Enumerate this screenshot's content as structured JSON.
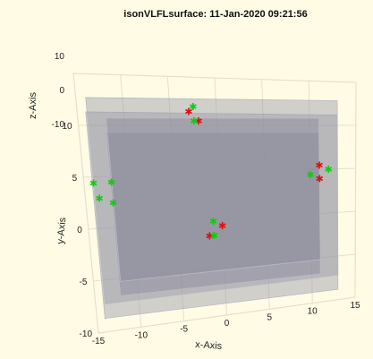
{
  "chart_data": {
    "type": "scatter3d",
    "title": "isonVLFLsurface: 11-Jan-2020 09:21:56",
    "xlabel": "x-Axis",
    "ylabel": "y-Axis",
    "zlabel": "z-Axis",
    "xlim": [
      -15,
      15
    ],
    "ylim": [
      -10,
      15
    ],
    "zlim": [
      -10,
      10
    ],
    "xticks": [
      "-15",
      "-10",
      "-5",
      "0",
      "5",
      "10",
      "15"
    ],
    "yticks": [
      "-10",
      "-5",
      "0",
      "5",
      "10"
    ],
    "zticks": [
      "-10",
      "0",
      "10"
    ],
    "grid": true,
    "box": {
      "outer": {
        "x": [
          -14,
          13
        ],
        "y": [
          -8,
          12
        ],
        "z": [
          -5,
          5
        ]
      },
      "inner": {
        "x": [
          -12,
          11
        ],
        "y": [
          -6,
          10
        ],
        "z": [
          -5,
          5
        ]
      }
    },
    "series": [
      {
        "color": "#dd1111",
        "points": [
          {
            "x": -3,
            "y": 11,
            "z": 3
          },
          {
            "x": -2,
            "y": 10,
            "z": 3
          },
          {
            "x": 11,
            "y": 5,
            "z": 3
          },
          {
            "x": 11,
            "y": 3.5,
            "z": 3
          },
          {
            "x": 0,
            "y": -1,
            "z": 3
          },
          {
            "x": -1.5,
            "y": -2,
            "z": 3
          }
        ]
      },
      {
        "color": "#11cc11",
        "points": [
          {
            "x": -2.5,
            "y": 11.5,
            "z": 3
          },
          {
            "x": -2.5,
            "y": 10,
            "z": 3
          },
          {
            "x": 12,
            "y": 4.5,
            "z": 3
          },
          {
            "x": 10,
            "y": 4,
            "z": 3
          },
          {
            "x": -1,
            "y": -0.5,
            "z": 3
          },
          {
            "x": -1,
            "y": -2,
            "z": 3
          },
          {
            "x": -14,
            "y": 4,
            "z": 3
          },
          {
            "x": -13.5,
            "y": 2.5,
            "z": 3
          },
          {
            "x": -12,
            "y": 4,
            "z": 3
          },
          {
            "x": -12,
            "y": 2,
            "z": 3
          }
        ]
      }
    ]
  }
}
